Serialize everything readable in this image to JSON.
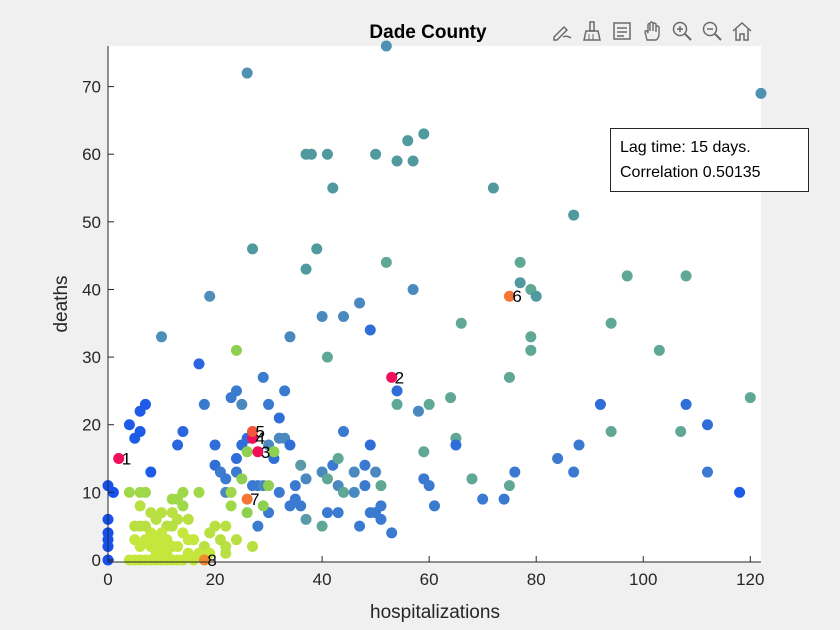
{
  "window": {
    "toolbar_icons": [
      "edit-icon",
      "brush-icon",
      "data-tips-icon",
      "pan-icon",
      "zoom-in-icon",
      "zoom-out-icon",
      "home-icon"
    ]
  },
  "annotation": {
    "line1": "Lag time: 15 days.",
    "line2": "Correlation 0.50135"
  },
  "colors": {
    "background": "#f0f0f0",
    "axes_background": "#ffffff",
    "highlight_red": "#f0105a",
    "highlight_orange": "#f57535"
  },
  "chart_data": {
    "type": "scatter",
    "title": "Dade County",
    "xlabel": "hospitalizations",
    "ylabel": "deaths",
    "xlim": [
      0,
      122
    ],
    "ylim": [
      -0.3,
      76
    ],
    "xticks": [
      "0",
      "20",
      "40",
      "60",
      "80",
      "100",
      "120"
    ],
    "yticks": [
      "0",
      "10",
      "20",
      "30",
      "40",
      "50",
      "60",
      "70"
    ],
    "grid": false,
    "points": [
      {
        "x": 0,
        "y": 11,
        "c": "#1550f0"
      },
      {
        "x": 0,
        "y": 6,
        "c": "#1550f0"
      },
      {
        "x": 0,
        "y": 4,
        "c": "#1550f0"
      },
      {
        "x": 0,
        "y": 3,
        "c": "#1550f0"
      },
      {
        "x": 0,
        "y": 2,
        "c": "#1550f0"
      },
      {
        "x": 0,
        "y": 0,
        "c": "#1550f0"
      },
      {
        "x": 1,
        "y": 10,
        "c": "#1550f0"
      },
      {
        "x": 4,
        "y": 20,
        "c": "#1e5be8"
      },
      {
        "x": 5,
        "y": 18,
        "c": "#1e5be8"
      },
      {
        "x": 6,
        "y": 19,
        "c": "#1e5be8"
      },
      {
        "x": 6,
        "y": 22,
        "c": "#1e5be8"
      },
      {
        "x": 7,
        "y": 23,
        "c": "#1e5be8"
      },
      {
        "x": 8,
        "y": 13,
        "c": "#1e5be8"
      },
      {
        "x": 10,
        "y": 33,
        "c": "#4e8fba"
      },
      {
        "x": 13,
        "y": 17,
        "c": "#2a66df"
      },
      {
        "x": 14,
        "y": 19,
        "c": "#2a66df"
      },
      {
        "x": 17,
        "y": 29,
        "c": "#2a66df"
      },
      {
        "x": 18,
        "y": 23,
        "c": "#3a79cd"
      },
      {
        "x": 19,
        "y": 39,
        "c": "#4e8fba"
      },
      {
        "x": 20,
        "y": 17,
        "c": "#2f6ed8"
      },
      {
        "x": 20,
        "y": 14,
        "c": "#2f6ed8"
      },
      {
        "x": 21,
        "y": 13,
        "c": "#3a7ad0"
      },
      {
        "x": 22,
        "y": 10,
        "c": "#4a88c0"
      },
      {
        "x": 22,
        "y": 12,
        "c": "#3a7ad0"
      },
      {
        "x": 23,
        "y": 24,
        "c": "#3a7ad0"
      },
      {
        "x": 24,
        "y": 25,
        "c": "#3a7ad0"
      },
      {
        "x": 24,
        "y": 15,
        "c": "#2f6ed8"
      },
      {
        "x": 24,
        "y": 13,
        "c": "#3a7ad0"
      },
      {
        "x": 25,
        "y": 23,
        "c": "#4a88c0"
      },
      {
        "x": 25,
        "y": 17,
        "c": "#2f6ed8"
      },
      {
        "x": 26,
        "y": 72,
        "c": "#4f91b0"
      },
      {
        "x": 27,
        "y": 46,
        "c": "#509a9f"
      },
      {
        "x": 26,
        "y": 18,
        "c": "#2f6ed8"
      },
      {
        "x": 27,
        "y": 18,
        "c": "#2f6ed8"
      },
      {
        "x": 27,
        "y": 11,
        "c": "#3a7ad0"
      },
      {
        "x": 28,
        "y": 11,
        "c": "#3a7ad0"
      },
      {
        "x": 28,
        "y": 5,
        "c": "#3a7ad0"
      },
      {
        "x": 29,
        "y": 27,
        "c": "#3a7ad0"
      },
      {
        "x": 29,
        "y": 11,
        "c": "#4a88c0"
      },
      {
        "x": 30,
        "y": 23,
        "c": "#3a7ad0"
      },
      {
        "x": 30,
        "y": 17,
        "c": "#4a88c0"
      },
      {
        "x": 30,
        "y": 7,
        "c": "#3a7ad0"
      },
      {
        "x": 31,
        "y": 15,
        "c": "#2f6ed8"
      },
      {
        "x": 32,
        "y": 21,
        "c": "#2f6ed8"
      },
      {
        "x": 32,
        "y": 18,
        "c": "#4a88c0"
      },
      {
        "x": 32,
        "y": 10,
        "c": "#3a7ad0"
      },
      {
        "x": 33,
        "y": 25,
        "c": "#3a7ad0"
      },
      {
        "x": 33,
        "y": 18,
        "c": "#4a88c0"
      },
      {
        "x": 34,
        "y": 33,
        "c": "#4a88c0"
      },
      {
        "x": 34,
        "y": 17,
        "c": "#2f6ed8"
      },
      {
        "x": 34,
        "y": 8,
        "c": "#3a7ad0"
      },
      {
        "x": 35,
        "y": 11,
        "c": "#3a7ad0"
      },
      {
        "x": 35,
        "y": 9,
        "c": "#3a7ad0"
      },
      {
        "x": 36,
        "y": 8,
        "c": "#3a7ad0"
      },
      {
        "x": 36,
        "y": 14,
        "c": "#5a9aa8"
      },
      {
        "x": 37,
        "y": 60,
        "c": "#509a9f"
      },
      {
        "x": 37,
        "y": 43,
        "c": "#509a9f"
      },
      {
        "x": 37,
        "y": 12,
        "c": "#4a88c0"
      },
      {
        "x": 37,
        "y": 6,
        "c": "#5a9aa8"
      },
      {
        "x": 38,
        "y": 60,
        "c": "#509a9f"
      },
      {
        "x": 39,
        "y": 46,
        "c": "#509a9f"
      },
      {
        "x": 40,
        "y": 36,
        "c": "#4a88c0"
      },
      {
        "x": 40,
        "y": 13,
        "c": "#4a88c0"
      },
      {
        "x": 40,
        "y": 5,
        "c": "#5fa895"
      },
      {
        "x": 41,
        "y": 60,
        "c": "#509a9f"
      },
      {
        "x": 41,
        "y": 30,
        "c": "#5fa895"
      },
      {
        "x": 41,
        "y": 12,
        "c": "#5fa895"
      },
      {
        "x": 41,
        "y": 7,
        "c": "#3a7ad0"
      },
      {
        "x": 42,
        "y": 55,
        "c": "#509a9f"
      },
      {
        "x": 42,
        "y": 14,
        "c": "#3a7ad0"
      },
      {
        "x": 43,
        "y": 15,
        "c": "#5fa895"
      },
      {
        "x": 43,
        "y": 11,
        "c": "#4a88c0"
      },
      {
        "x": 43,
        "y": 7,
        "c": "#3a7ad0"
      },
      {
        "x": 44,
        "y": 36,
        "c": "#4a88c0"
      },
      {
        "x": 44,
        "y": 19,
        "c": "#3a7ad0"
      },
      {
        "x": 44,
        "y": 10,
        "c": "#5fa895"
      },
      {
        "x": 46,
        "y": 13,
        "c": "#4a88c0"
      },
      {
        "x": 46,
        "y": 10,
        "c": "#4a88c0"
      },
      {
        "x": 47,
        "y": 38,
        "c": "#4a88c0"
      },
      {
        "x": 47,
        "y": 5,
        "c": "#3a7ad0"
      },
      {
        "x": 48,
        "y": 14,
        "c": "#3a7ad0"
      },
      {
        "x": 48,
        "y": 11,
        "c": "#3a7ad0"
      },
      {
        "x": 49,
        "y": 34,
        "c": "#2f6ed8"
      },
      {
        "x": 49,
        "y": 17,
        "c": "#2f6ed8"
      },
      {
        "x": 49,
        "y": 7,
        "c": "#3a7ad0"
      },
      {
        "x": 50,
        "y": 60,
        "c": "#509a9f"
      },
      {
        "x": 50,
        "y": 13,
        "c": "#4a88c0"
      },
      {
        "x": 50,
        "y": 7,
        "c": "#3a7ad0"
      },
      {
        "x": 51,
        "y": 8,
        "c": "#3a7ad0"
      },
      {
        "x": 51,
        "y": 6,
        "c": "#3a7ad0"
      },
      {
        "x": 51,
        "y": 11,
        "c": "#5fa895"
      },
      {
        "x": 52,
        "y": 76,
        "c": "#4f91b0"
      },
      {
        "x": 52,
        "y": 44,
        "c": "#5fa895"
      },
      {
        "x": 53,
        "y": 4,
        "c": "#3a7ad0"
      },
      {
        "x": 54,
        "y": 59,
        "c": "#509a9f"
      },
      {
        "x": 54,
        "y": 25,
        "c": "#2f6ed8"
      },
      {
        "x": 54,
        "y": 23,
        "c": "#5fa895"
      },
      {
        "x": 56,
        "y": 62,
        "c": "#509a9f"
      },
      {
        "x": 57,
        "y": 59,
        "c": "#509a9f"
      },
      {
        "x": 57,
        "y": 40,
        "c": "#4a88c0"
      },
      {
        "x": 58,
        "y": 22,
        "c": "#4a88c0"
      },
      {
        "x": 59,
        "y": 63,
        "c": "#509a9f"
      },
      {
        "x": 59,
        "y": 16,
        "c": "#5fa895"
      },
      {
        "x": 59,
        "y": 12,
        "c": "#3a7ad0"
      },
      {
        "x": 60,
        "y": 23,
        "c": "#5fa895"
      },
      {
        "x": 60,
        "y": 11,
        "c": "#3a7ad0"
      },
      {
        "x": 61,
        "y": 8,
        "c": "#3a7ad0"
      },
      {
        "x": 64,
        "y": 24,
        "c": "#5fa895"
      },
      {
        "x": 65,
        "y": 18,
        "c": "#5fa895"
      },
      {
        "x": 65,
        "y": 17,
        "c": "#2f6ed8"
      },
      {
        "x": 66,
        "y": 35,
        "c": "#5fa895"
      },
      {
        "x": 68,
        "y": 12,
        "c": "#5fa895"
      },
      {
        "x": 70,
        "y": 9,
        "c": "#3a7ad0"
      },
      {
        "x": 72,
        "y": 55,
        "c": "#509a9f"
      },
      {
        "x": 74,
        "y": 9,
        "c": "#3a7ad0"
      },
      {
        "x": 75,
        "y": 27,
        "c": "#5fa895"
      },
      {
        "x": 75,
        "y": 11,
        "c": "#5fa895"
      },
      {
        "x": 76,
        "y": 13,
        "c": "#3a7ad0"
      },
      {
        "x": 77,
        "y": 44,
        "c": "#5fa895"
      },
      {
        "x": 77,
        "y": 41,
        "c": "#509a9f"
      },
      {
        "x": 79,
        "y": 40,
        "c": "#5fa895"
      },
      {
        "x": 79,
        "y": 33,
        "c": "#5fa895"
      },
      {
        "x": 79,
        "y": 31,
        "c": "#5fa895"
      },
      {
        "x": 80,
        "y": 39,
        "c": "#509a9f"
      },
      {
        "x": 84,
        "y": 15,
        "c": "#3a7ad0"
      },
      {
        "x": 87,
        "y": 51,
        "c": "#509a9f"
      },
      {
        "x": 87,
        "y": 13,
        "c": "#3a7ad0"
      },
      {
        "x": 88,
        "y": 17,
        "c": "#3a7ad0"
      },
      {
        "x": 92,
        "y": 23,
        "c": "#2f6ed8"
      },
      {
        "x": 94,
        "y": 35,
        "c": "#5fa895"
      },
      {
        "x": 94,
        "y": 19,
        "c": "#5fa895"
      },
      {
        "x": 97,
        "y": 42,
        "c": "#5fa895"
      },
      {
        "x": 103,
        "y": 31,
        "c": "#5fa895"
      },
      {
        "x": 107,
        "y": 19,
        "c": "#5fa895"
      },
      {
        "x": 108,
        "y": 42,
        "c": "#5fa895"
      },
      {
        "x": 108,
        "y": 23,
        "c": "#2f6ed8"
      },
      {
        "x": 112,
        "y": 20,
        "c": "#2f6ed8"
      },
      {
        "x": 112,
        "y": 13,
        "c": "#3a7ad0"
      },
      {
        "x": 118,
        "y": 10,
        "c": "#1e5be8"
      },
      {
        "x": 120,
        "y": 24,
        "c": "#5fa895"
      },
      {
        "x": 122,
        "y": 69,
        "c": "#4f91b0"
      },
      {
        "x": 24,
        "y": 31,
        "c": "#8fd050"
      },
      {
        "x": 26,
        "y": 16,
        "c": "#8fd050"
      },
      {
        "x": 25,
        "y": 12,
        "c": "#8fd050"
      },
      {
        "x": 26,
        "y": 7,
        "c": "#8fd050"
      },
      {
        "x": 30,
        "y": 11,
        "c": "#8fd050"
      },
      {
        "x": 31,
        "y": 16,
        "c": "#8fd050"
      },
      {
        "x": 29,
        "y": 8,
        "c": "#8fd050"
      },
      {
        "x": 23,
        "y": 10,
        "c": "#9fd848"
      },
      {
        "x": 23,
        "y": 8,
        "c": "#9fd848"
      },
      {
        "x": 22,
        "y": 5,
        "c": "#b8e040"
      },
      {
        "x": 24,
        "y": 3,
        "c": "#b8e040"
      },
      {
        "x": 22,
        "y": 2,
        "c": "#b8e040"
      },
      {
        "x": 22,
        "y": 1,
        "c": "#b8e040"
      },
      {
        "x": 27,
        "y": 2,
        "c": "#b8e040"
      },
      {
        "x": 20,
        "y": 5,
        "c": "#b8e040"
      },
      {
        "x": 21,
        "y": 3,
        "c": "#b8e040"
      },
      {
        "x": 19,
        "y": 4,
        "c": "#b8e040"
      },
      {
        "x": 18,
        "y": 2,
        "c": "#b8e040"
      },
      {
        "x": 17,
        "y": 10,
        "c": "#9fd848"
      },
      {
        "x": 17,
        "y": 1,
        "c": "#c5e63c"
      },
      {
        "x": 16,
        "y": 3,
        "c": "#c5e63c"
      },
      {
        "x": 15,
        "y": 6,
        "c": "#b8e040"
      },
      {
        "x": 15,
        "y": 1,
        "c": "#c5e63c"
      },
      {
        "x": 14,
        "y": 10,
        "c": "#9fd848"
      },
      {
        "x": 14,
        "y": 8,
        "c": "#9fd848"
      },
      {
        "x": 14,
        "y": 4,
        "c": "#c5e63c"
      },
      {
        "x": 14,
        "y": 0,
        "c": "#c5e63c"
      },
      {
        "x": 13,
        "y": 9,
        "c": "#9fd848"
      },
      {
        "x": 13,
        "y": 6,
        "c": "#b8e040"
      },
      {
        "x": 13,
        "y": 2,
        "c": "#c5e63c"
      },
      {
        "x": 12,
        "y": 9,
        "c": "#9fd848"
      },
      {
        "x": 12,
        "y": 7,
        "c": "#b8e040"
      },
      {
        "x": 12,
        "y": 5,
        "c": "#b8e040"
      },
      {
        "x": 12,
        "y": 2,
        "c": "#c5e63c"
      },
      {
        "x": 12,
        "y": 0,
        "c": "#c5e63c"
      },
      {
        "x": 11,
        "y": 5,
        "c": "#b8e040"
      },
      {
        "x": 11,
        "y": 3,
        "c": "#c5e63c"
      },
      {
        "x": 11,
        "y": 1,
        "c": "#c5e63c"
      },
      {
        "x": 10,
        "y": 7,
        "c": "#b8e040"
      },
      {
        "x": 10,
        "y": 4,
        "c": "#c5e63c"
      },
      {
        "x": 10,
        "y": 2,
        "c": "#c5e63c"
      },
      {
        "x": 10,
        "y": 0,
        "c": "#c5e63c"
      },
      {
        "x": 9,
        "y": 6,
        "c": "#b8e040"
      },
      {
        "x": 9,
        "y": 3,
        "c": "#c5e63c"
      },
      {
        "x": 9,
        "y": 1,
        "c": "#c5e63c"
      },
      {
        "x": 8,
        "y": 7,
        "c": "#b8e040"
      },
      {
        "x": 8,
        "y": 4,
        "c": "#c5e63c"
      },
      {
        "x": 8,
        "y": 2,
        "c": "#c5e63c"
      },
      {
        "x": 8,
        "y": 0,
        "c": "#c5e63c"
      },
      {
        "x": 7,
        "y": 10,
        "c": "#9fd848"
      },
      {
        "x": 7,
        "y": 5,
        "c": "#b8e040"
      },
      {
        "x": 7,
        "y": 3,
        "c": "#c5e63c"
      },
      {
        "x": 7,
        "y": 0,
        "c": "#c5e63c"
      },
      {
        "x": 6,
        "y": 8,
        "c": "#b8e040"
      },
      {
        "x": 6,
        "y": 5,
        "c": "#b8e040"
      },
      {
        "x": 6,
        "y": 2,
        "c": "#c5e63c"
      },
      {
        "x": 6,
        "y": 0,
        "c": "#c5e63c"
      },
      {
        "x": 5,
        "y": 5,
        "c": "#b8e040"
      },
      {
        "x": 5,
        "y": 3,
        "c": "#c5e63c"
      },
      {
        "x": 5,
        "y": 0,
        "c": "#c5e63c"
      },
      {
        "x": 4,
        "y": 10,
        "c": "#9fd848"
      },
      {
        "x": 4,
        "y": 0,
        "c": "#c5e63c"
      },
      {
        "x": 6,
        "y": 10,
        "c": "#9fd848"
      },
      {
        "x": 11,
        "y": 0,
        "c": "#c5e63c"
      },
      {
        "x": 13,
        "y": 0,
        "c": "#c5e63c"
      },
      {
        "x": 9,
        "y": 0,
        "c": "#c5e63c"
      },
      {
        "x": 15,
        "y": 3,
        "c": "#c5e63c"
      },
      {
        "x": 16,
        "y": 0,
        "c": "#c5e63c"
      },
      {
        "x": 19,
        "y": 1,
        "c": "#c5e63c"
      }
    ],
    "labeled_points": [
      {
        "label": "1",
        "x": 2,
        "y": 15,
        "c": "#f0105a"
      },
      {
        "label": "2",
        "x": 53,
        "y": 27,
        "c": "#f0105a"
      },
      {
        "label": "3",
        "x": 28,
        "y": 16,
        "c": "#f0105a"
      },
      {
        "label": "4",
        "x": 27,
        "y": 18,
        "c": "#f0105a"
      },
      {
        "label": "5",
        "x": 27,
        "y": 19,
        "c": "#f5553a"
      },
      {
        "label": "6",
        "x": 75,
        "y": 39,
        "c": "#f57535"
      },
      {
        "label": "7",
        "x": 26,
        "y": 9,
        "c": "#f57535"
      },
      {
        "label": "8",
        "x": 18,
        "y": 0,
        "c": "#f08a30"
      }
    ]
  }
}
